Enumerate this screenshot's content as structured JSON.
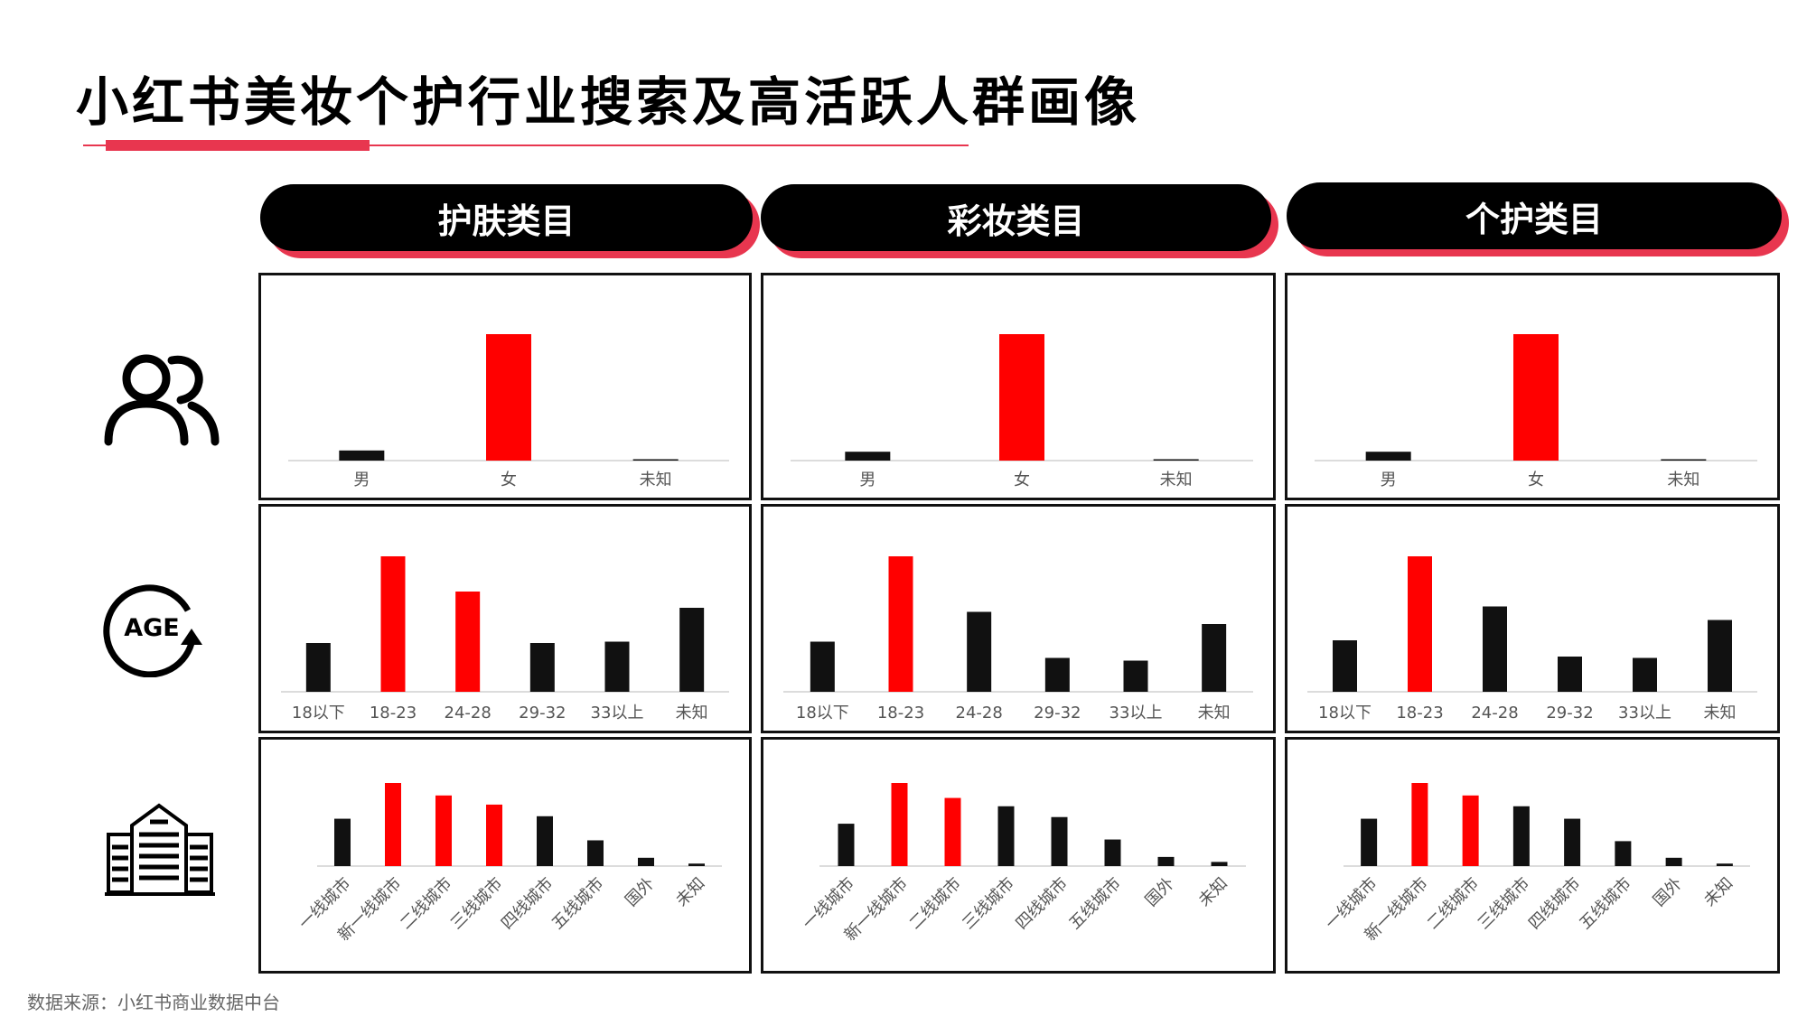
{
  "title": "小红书美妆个护行业搜索及高活跃人群画像",
  "source": "数据来源：小红书商业数据中台",
  "icons": {
    "gender": "people-icon",
    "age": "age-icon",
    "age_label": "AGE",
    "city": "city-buildings-icon"
  },
  "colors": {
    "accent": "#e8364f",
    "highlight": "#ff0000",
    "bar": "#111111",
    "pill": "#000000"
  },
  "categories": [
    {
      "label": "护肤类目"
    },
    {
      "label": "彩妆类目"
    },
    {
      "label": "个护类目"
    }
  ],
  "chart_data": [
    {
      "type": "bar",
      "category": "护肤类目",
      "dimension": "gender",
      "categories": [
        "男",
        "女",
        "未知"
      ],
      "values": [
        8,
        100,
        0
      ],
      "highlight": [
        1
      ]
    },
    {
      "type": "bar",
      "category": "彩妆类目",
      "dimension": "gender",
      "categories": [
        "男",
        "女",
        "未知"
      ],
      "values": [
        7,
        100,
        0.5
      ],
      "highlight": [
        1
      ]
    },
    {
      "type": "bar",
      "category": "个护类目",
      "dimension": "gender",
      "categories": [
        "男",
        "女",
        "未知"
      ],
      "values": [
        7,
        100,
        0.5
      ],
      "highlight": [
        1
      ]
    },
    {
      "type": "bar",
      "category": "护肤类目",
      "dimension": "age",
      "categories": [
        "18以下",
        "18-23",
        "24-28",
        "29-32",
        "33以上",
        "未知"
      ],
      "values": [
        36,
        100,
        74,
        36,
        37,
        62
      ],
      "highlight": [
        1,
        2
      ]
    },
    {
      "type": "bar",
      "category": "彩妆类目",
      "dimension": "age",
      "categories": [
        "18以下",
        "18-23",
        "24-28",
        "29-32",
        "33以上",
        "未知"
      ],
      "values": [
        37,
        100,
        59,
        25,
        23,
        50
      ],
      "highlight": [
        1
      ]
    },
    {
      "type": "bar",
      "category": "个护类目",
      "dimension": "age",
      "categories": [
        "18以下",
        "18-23",
        "24-28",
        "29-32",
        "33以上",
        "未知"
      ],
      "values": [
        38,
        100,
        63,
        26,
        25,
        53
      ],
      "highlight": [
        1
      ]
    },
    {
      "type": "bar",
      "category": "护肤类目",
      "dimension": "city",
      "categories": [
        "一线城市",
        "新一线城市",
        "二线城市",
        "三线城市",
        "四线城市",
        "五线城市",
        "国外",
        "未知"
      ],
      "values": [
        57,
        100,
        85,
        74,
        60,
        31,
        10,
        3
      ],
      "highlight": [
        1,
        2,
        3
      ]
    },
    {
      "type": "bar",
      "category": "彩妆类目",
      "dimension": "city",
      "categories": [
        "一线城市",
        "新一线城市",
        "二线城市",
        "三线城市",
        "四线城市",
        "五线城市",
        "国外",
        "未知"
      ],
      "values": [
        51,
        100,
        82,
        72,
        59,
        32,
        11,
        5
      ],
      "highlight": [
        1,
        2
      ]
    },
    {
      "type": "bar",
      "category": "个护类目",
      "dimension": "city",
      "categories": [
        "一线城市",
        "新一线城市",
        "二线城市",
        "三线城市",
        "四线城市",
        "五线城市",
        "国外",
        "未知"
      ],
      "values": [
        57,
        100,
        85,
        72,
        57,
        30,
        10,
        3
      ],
      "highlight": [
        1,
        2
      ]
    }
  ]
}
